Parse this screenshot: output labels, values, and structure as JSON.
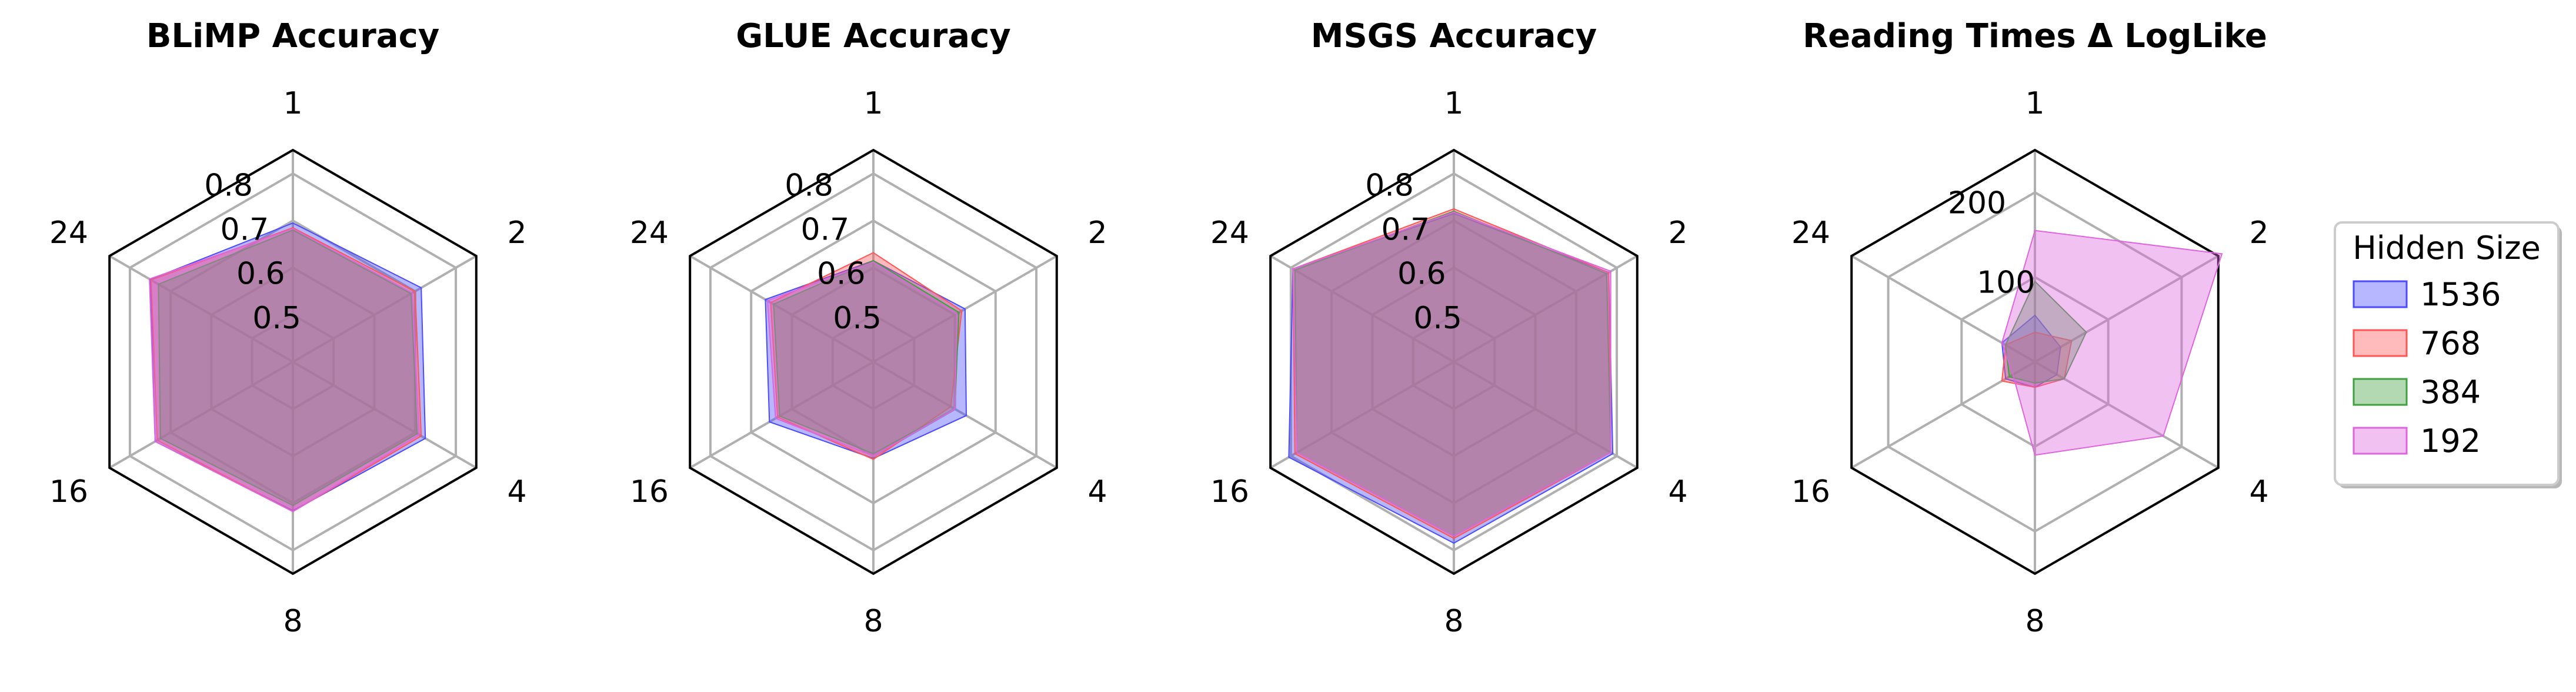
{
  "chart_data": [
    {
      "type": "radar",
      "title": "BLiMP Accuracy",
      "axes": [
        "1",
        "2",
        "4",
        "8",
        "16",
        "24"
      ],
      "rlim": [
        0.4,
        0.85
      ],
      "r_ticks": [
        0.5,
        0.6,
        0.7,
        0.8
      ],
      "r_tick_labels": [
        "0.5",
        "0.6",
        "0.7",
        "0.8"
      ],
      "grid": true,
      "series": [
        {
          "name": "1536",
          "color": "#4b4bff",
          "values": [
            0.695,
            0.715,
            0.725,
            0.716,
            0.738,
            0.75
          ]
        },
        {
          "name": "768",
          "color": "#ff5555",
          "values": [
            0.685,
            0.7,
            0.715,
            0.718,
            0.733,
            0.748
          ]
        },
        {
          "name": "384",
          "color": "#40a040",
          "values": [
            0.68,
            0.69,
            0.705,
            0.705,
            0.725,
            0.73
          ]
        },
        {
          "name": "192",
          "color": "#dd66dd",
          "values": [
            0.683,
            0.693,
            0.71,
            0.718,
            0.738,
            0.752
          ]
        }
      ]
    },
    {
      "type": "radar",
      "title": "GLUE Accuracy",
      "axes": [
        "1",
        "2",
        "4",
        "8",
        "16",
        "24"
      ],
      "rlim": [
        0.4,
        0.85
      ],
      "r_ticks": [
        0.5,
        0.6,
        0.7,
        0.8
      ],
      "r_tick_labels": [
        "0.5",
        "0.6",
        "0.7",
        "0.8"
      ],
      "grid": true,
      "series": [
        {
          "name": "1536",
          "color": "#4b4bff",
          "values": [
            0.615,
            0.625,
            0.628,
            0.605,
            0.655,
            0.665
          ]
        },
        {
          "name": "768",
          "color": "#ff5555",
          "values": [
            0.632,
            0.617,
            0.59,
            0.607,
            0.635,
            0.652
          ]
        },
        {
          "name": "384",
          "color": "#40a040",
          "values": [
            0.615,
            0.61,
            0.6,
            0.595,
            0.63,
            0.645
          ]
        },
        {
          "name": "192",
          "color": "#dd66dd",
          "values": [
            0.612,
            0.605,
            0.6,
            0.6,
            0.64,
            0.66
          ]
        }
      ]
    },
    {
      "type": "radar",
      "title": "MSGS Accuracy",
      "axes": [
        "1",
        "2",
        "4",
        "8",
        "16",
        "24"
      ],
      "rlim": [
        0.4,
        0.85
      ],
      "r_ticks": [
        0.5,
        0.6,
        0.7,
        0.8
      ],
      "r_tick_labels": [
        "0.5",
        "0.6",
        "0.7",
        "0.8"
      ],
      "grid": true,
      "series": [
        {
          "name": "1536",
          "color": "#4b4bff",
          "values": [
            0.715,
            0.78,
            0.79,
            0.785,
            0.805,
            0.795
          ]
        },
        {
          "name": "768",
          "color": "#ff5555",
          "values": [
            0.725,
            0.78,
            0.785,
            0.775,
            0.79,
            0.795
          ]
        },
        {
          "name": "384",
          "color": "#40a040",
          "values": [
            0.72,
            0.775,
            0.785,
            0.77,
            0.785,
            0.79
          ]
        },
        {
          "name": "192",
          "color": "#dd66dd",
          "values": [
            0.718,
            0.785,
            0.785,
            0.77,
            0.785,
            0.795
          ]
        }
      ]
    },
    {
      "type": "radar",
      "title": "Reading Times Δ LogLike",
      "axes": [
        "1",
        "2",
        "4",
        "8",
        "16",
        "24"
      ],
      "rlim": [
        0,
        250
      ],
      "r_ticks": [
        100,
        200
      ],
      "r_tick_labels": [
        "100",
        "200"
      ],
      "grid": true,
      "series": [
        {
          "name": "1536",
          "color": "#4b4bff",
          "values": [
            55,
            35,
            30,
            30,
            40,
            45
          ]
        },
        {
          "name": "768",
          "color": "#ff5555",
          "values": [
            35,
            50,
            40,
            30,
            45,
            40
          ]
        },
        {
          "name": "384",
          "color": "#40a040",
          "values": [
            95,
            70,
            40,
            25,
            35,
            40
          ]
        },
        {
          "name": "192",
          "color": "#dd66dd",
          "values": [
            155,
            255,
            175,
            110,
            30,
            45
          ]
        }
      ]
    }
  ],
  "legend": {
    "title": "Hidden Size",
    "placement": "right",
    "entries": [
      "1536",
      "768",
      "384",
      "192"
    ]
  }
}
